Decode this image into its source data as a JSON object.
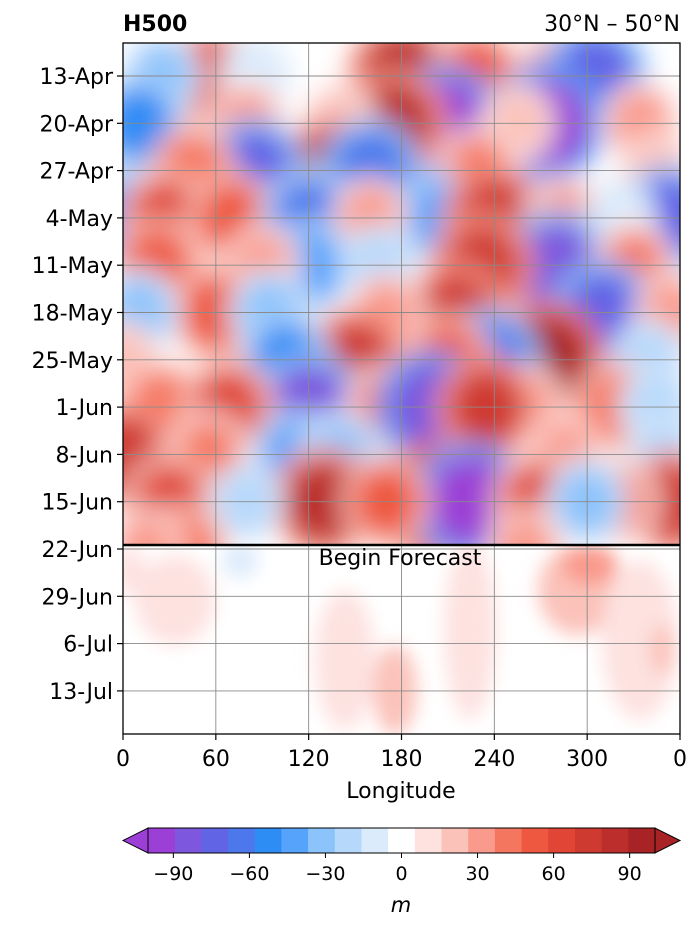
{
  "chart_data": {
    "type": "heatmap",
    "title": "H500",
    "subtitle": "30°N – 50°N",
    "xlabel": "Longitude",
    "x_ticks": [
      "0",
      "60",
      "120",
      "180",
      "240",
      "300",
      "0"
    ],
    "y_ticks": [
      "13-Apr",
      "20-Apr",
      "27-Apr",
      "4-May",
      "11-May",
      "18-May",
      "25-May",
      "1-Jun",
      "8-Jun",
      "15-Jun",
      "22-Jun",
      "29-Jun",
      "6-Jul",
      "13-Jul"
    ],
    "annotation": "Begin Forecast",
    "colorbar": {
      "label": "m",
      "ticks": [
        "−90",
        "−60",
        "−30",
        "0",
        "30",
        "60",
        "90"
      ],
      "levels": [
        -100,
        -90,
        -80,
        -70,
        -60,
        -50,
        -40,
        -30,
        -20,
        -10,
        10,
        20,
        30,
        40,
        50,
        60,
        70,
        80,
        90,
        100
      ],
      "colors": [
        "#9b3fd6",
        "#7d57de",
        "#6264e6",
        "#4c78ec",
        "#2e8cf5",
        "#55a3fb",
        "#8cc3fb",
        "#b6d8fb",
        "#dcebfb",
        "#ffffff",
        "#fde2e0",
        "#fbc2ba",
        "#f99a8c",
        "#f5765f",
        "#ee5840",
        "#e04535",
        "#cf3a30",
        "#bc2e2b",
        "#a82326"
      ]
    },
    "grid": true,
    "features": [
      {
        "lon": 180,
        "date": "13-Apr",
        "value": 85
      },
      {
        "lon": 228,
        "date": "13-Apr",
        "value": 55
      },
      {
        "lon": 283,
        "date": "13-Apr",
        "value": 45
      },
      {
        "lon": 305,
        "date": "13-Apr",
        "value": -80
      },
      {
        "lon": 55,
        "date": "13-Apr",
        "value": 65
      },
      {
        "lon": 25,
        "date": "13-Apr",
        "value": -35
      },
      {
        "lon": 85,
        "date": "13-Apr",
        "value": -20
      },
      {
        "lon": 208,
        "date": "20-Apr",
        "value": -95
      },
      {
        "lon": 175,
        "date": "20-Apr",
        "value": 80
      },
      {
        "lon": 273,
        "date": "20-Apr",
        "value": -100
      },
      {
        "lon": 10,
        "date": "20-Apr",
        "value": -55
      },
      {
        "lon": 80,
        "date": "20-Apr",
        "value": 35
      },
      {
        "lon": 255,
        "date": "20-Apr",
        "value": 25
      },
      {
        "lon": 335,
        "date": "20-Apr",
        "value": 35
      },
      {
        "lon": 140,
        "date": "20-Apr",
        "value": 25
      },
      {
        "lon": 135,
        "date": "27-Apr",
        "value": 80
      },
      {
        "lon": 85,
        "date": "27-Apr",
        "value": -75
      },
      {
        "lon": 160,
        "date": "27-Apr",
        "value": -70
      },
      {
        "lon": 45,
        "date": "27-Apr",
        "value": 45
      },
      {
        "lon": 230,
        "date": "27-Apr",
        "value": 40
      },
      {
        "lon": 345,
        "date": "27-Apr",
        "value": 25
      },
      {
        "lon": 353,
        "date": "4-May",
        "value": -75
      },
      {
        "lon": 2,
        "date": "4-May",
        "value": -55
      },
      {
        "lon": 27,
        "date": "4-May",
        "value": 60
      },
      {
        "lon": 70,
        "date": "4-May",
        "value": 50
      },
      {
        "lon": 120,
        "date": "4-May",
        "value": -65
      },
      {
        "lon": 205,
        "date": "4-May",
        "value": -45
      },
      {
        "lon": 240,
        "date": "4-May",
        "value": 75
      },
      {
        "lon": 160,
        "date": "4-May",
        "value": 30
      },
      {
        "lon": 285,
        "date": "4-May",
        "value": 35
      },
      {
        "lon": 322,
        "date": "4-May",
        "value": -20
      },
      {
        "lon": 280,
        "date": "11-May",
        "value": -85
      },
      {
        "lon": 120,
        "date": "11-May",
        "value": -50
      },
      {
        "lon": 22,
        "date": "11-May",
        "value": 55
      },
      {
        "lon": 90,
        "date": "11-May",
        "value": 30
      },
      {
        "lon": 232,
        "date": "11-May",
        "value": 75
      },
      {
        "lon": 165,
        "date": "11-May",
        "value": -30
      },
      {
        "lon": 330,
        "date": "11-May",
        "value": 40
      },
      {
        "lon": 310,
        "date": "18-May",
        "value": -75
      },
      {
        "lon": 215,
        "date": "18-May",
        "value": 70
      },
      {
        "lon": 60,
        "date": "18-May",
        "value": 55
      },
      {
        "lon": 95,
        "date": "18-May",
        "value": -40
      },
      {
        "lon": 170,
        "date": "18-May",
        "value": 30
      },
      {
        "lon": 10,
        "date": "18-May",
        "value": -40
      },
      {
        "lon": 355,
        "date": "18-May",
        "value": 30
      },
      {
        "lon": 150,
        "date": "25-May",
        "value": 70
      },
      {
        "lon": 273,
        "date": "25-May",
        "value": 95
      },
      {
        "lon": 237,
        "date": "25-May",
        "value": -70
      },
      {
        "lon": 105,
        "date": "25-May",
        "value": -55
      },
      {
        "lon": 210,
        "date": "25-May",
        "value": 50
      },
      {
        "lon": 340,
        "date": "25-May",
        "value": -30
      },
      {
        "lon": 0,
        "date": "25-May",
        "value": 25
      },
      {
        "lon": 120,
        "date": "1-Jun",
        "value": -85
      },
      {
        "lon": 25,
        "date": "1-Jun",
        "value": 45
      },
      {
        "lon": 68,
        "date": "1-Jun",
        "value": 60
      },
      {
        "lon": 170,
        "date": "1-Jun",
        "value": 40
      },
      {
        "lon": 260,
        "date": "1-Jun",
        "value": 35
      },
      {
        "lon": 318,
        "date": "1-Jun",
        "value": 45
      },
      {
        "lon": 345,
        "date": "1-Jun",
        "value": -30
      },
      {
        "lon": 190,
        "date": "8-Jun",
        "value": -25
      },
      {
        "lon": 200,
        "date": "1-Jun",
        "value": -90
      },
      {
        "lon": 235,
        "date": "1-Jun",
        "value": 70
      },
      {
        "lon": 0,
        "date": "8-Jun",
        "value": 70
      },
      {
        "lon": 112,
        "date": "8-Jun",
        "value": -45
      },
      {
        "lon": 140,
        "date": "8-Jun",
        "value": -40
      },
      {
        "lon": 55,
        "date": "8-Jun",
        "value": 40
      },
      {
        "lon": 285,
        "date": "8-Jun",
        "value": 30
      },
      {
        "lon": 350,
        "date": "8-Jun",
        "value": -30
      },
      {
        "lon": 200,
        "date": "15-Jun",
        "value": 100
      },
      {
        "lon": 225,
        "date": "15-Jun",
        "value": -100
      },
      {
        "lon": 130,
        "date": "15-Jun",
        "value": 80
      },
      {
        "lon": 30,
        "date": "15-Jun",
        "value": 60
      },
      {
        "lon": 170,
        "date": "15-Jun",
        "value": 50
      },
      {
        "lon": 270,
        "date": "15-Jun",
        "value": 65
      },
      {
        "lon": 355,
        "date": "15-Jun",
        "value": 70
      },
      {
        "lon": 80,
        "date": "15-Jun",
        "value": -25
      },
      {
        "lon": 320,
        "date": "15-Jun",
        "value": 40
      },
      {
        "lon": 300,
        "date": "15-Jun",
        "value": -40
      },
      {
        "lon": 260,
        "date": "22-Jun",
        "value": 30
      },
      {
        "lon": 40,
        "date": "22-Jun",
        "value": 45
      },
      {
        "lon": 15,
        "date": "22-Jun",
        "value": 30
      }
    ]
  }
}
